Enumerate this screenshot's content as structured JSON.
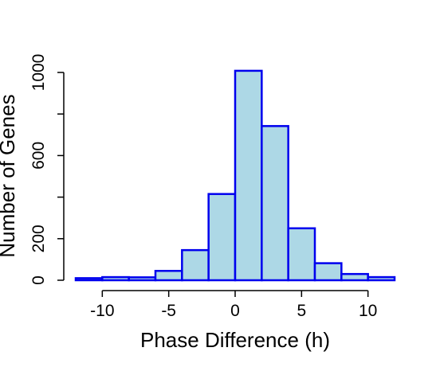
{
  "chart_data": {
    "type": "bar",
    "histogram": true,
    "title": "",
    "xlabel": "Phase Difference (h)",
    "ylabel": "Number of Genes",
    "bins": [
      {
        "x0": -12,
        "x1": -10,
        "count": 10
      },
      {
        "x0": -10,
        "x1": -8,
        "count": 15
      },
      {
        "x0": -8,
        "x1": -6,
        "count": 14
      },
      {
        "x0": -6,
        "x1": -4,
        "count": 45
      },
      {
        "x0": -4,
        "x1": -2,
        "count": 145
      },
      {
        "x0": -2,
        "x1": 0,
        "count": 415
      },
      {
        "x0": 0,
        "x1": 2,
        "count": 1008
      },
      {
        "x0": 2,
        "x1": 4,
        "count": 742
      },
      {
        "x0": 4,
        "x1": 6,
        "count": 250
      },
      {
        "x0": 6,
        "x1": 8,
        "count": 82
      },
      {
        "x0": 8,
        "x1": 10,
        "count": 30
      },
      {
        "x0": 10,
        "x1": 12,
        "count": 15
      }
    ],
    "xlim": [
      -12,
      12
    ],
    "ylim": [
      0,
      1000
    ],
    "x_ticks": [
      -10,
      -5,
      0,
      5,
      10
    ],
    "x_tick_labels": [
      "-10",
      "-5",
      "0",
      "5",
      "10"
    ],
    "y_ticks": [
      0,
      200,
      400,
      600,
      800,
      1000
    ],
    "y_tick_labels": [
      "0",
      "200",
      "",
      "600",
      "",
      "1000"
    ],
    "bar_fill": "#add8e6",
    "bar_stroke": "#0000ee",
    "grid": false,
    "legend": "none"
  }
}
